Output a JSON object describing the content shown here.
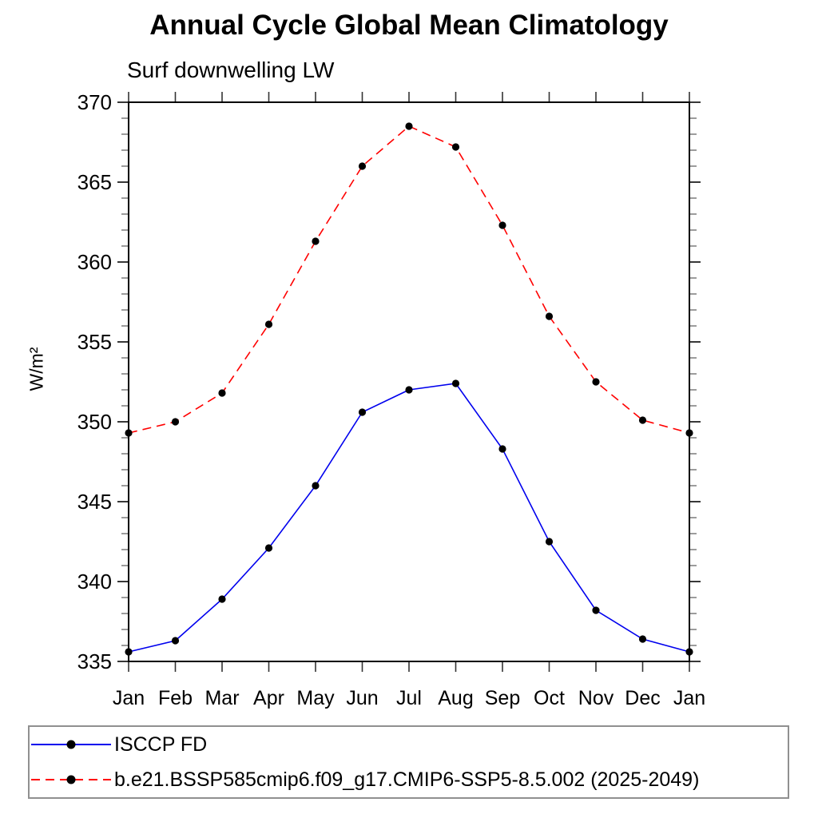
{
  "chart_data": {
    "type": "line",
    "title": "Annual Cycle Global Mean Climatology",
    "subtitle": "Surf downwelling LW",
    "xlabel": "",
    "ylabel": "W/m²",
    "x_categories": [
      "Jan",
      "Feb",
      "Mar",
      "Apr",
      "May",
      "Jun",
      "Jul",
      "Aug",
      "Sep",
      "Oct",
      "Nov",
      "Dec",
      "Jan"
    ],
    "ylim": [
      335,
      370
    ],
    "ytick_step_major": 5,
    "ytick_step_minor": 1,
    "ytick_labels": [
      "335",
      "340",
      "345",
      "350",
      "355",
      "360",
      "365",
      "370"
    ],
    "grid": false,
    "legend_position": "bottom",
    "series": [
      {
        "name": "ISCCP FD",
        "color": "#0000ee",
        "line_style": "solid",
        "marker": "filled-circle",
        "marker_color": "#000000",
        "values": [
          335.6,
          336.3,
          338.9,
          342.1,
          346.0,
          350.6,
          352.0,
          352.4,
          348.3,
          342.5,
          338.2,
          336.4,
          335.6
        ]
      },
      {
        "name": "b.e21.BSSP585cmip6.f09_g17.CMIP6-SSP5-8.5.002 (2025-2049)",
        "color": "#ff0000",
        "line_style": "dashed",
        "marker": "filled-circle",
        "marker_color": "#000000",
        "values": [
          349.3,
          350.0,
          351.8,
          356.1,
          361.3,
          366.0,
          368.5,
          367.2,
          362.3,
          356.6,
          352.5,
          350.1,
          349.3
        ]
      }
    ]
  }
}
